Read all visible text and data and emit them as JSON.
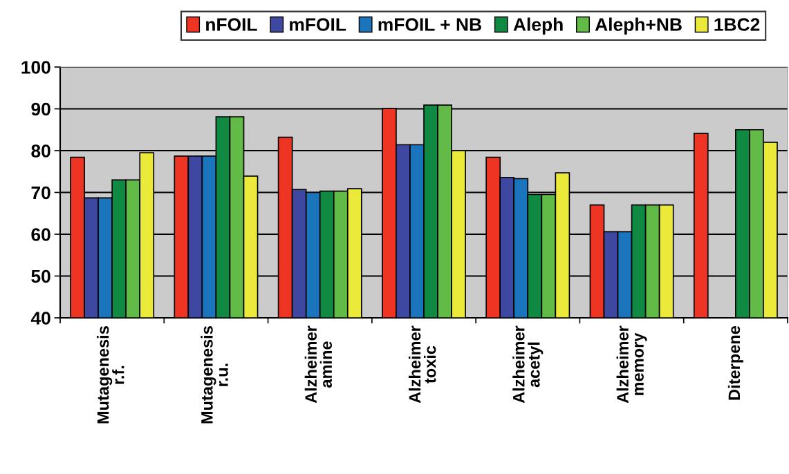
{
  "chart_data": {
    "type": "bar",
    "categories": [
      "Mutagenesis\nr.f.",
      "Mutagenesis\nr.u.",
      "Alzheimer\namine",
      "Alzheimer\ntoxic",
      "Alzheimer\nacetyl",
      "Alzheimer\nmemory",
      "Diterpene"
    ],
    "series": [
      {
        "name": "nFOIL",
        "color": "#ee3524",
        "values": [
          78.4,
          78.7,
          83.2,
          90.1,
          78.4,
          67.0,
          84.1
        ]
      },
      {
        "name": "mFOIL",
        "color": "#3f48a0",
        "values": [
          68.7,
          78.7,
          70.7,
          81.4,
          73.6,
          60.6,
          null
        ]
      },
      {
        "name": "mFOIL + NB",
        "color": "#1a75bc",
        "values": [
          68.7,
          78.7,
          70.0,
          81.4,
          73.3,
          60.6,
          null
        ]
      },
      {
        "name": "Aleph",
        "color": "#108a43",
        "values": [
          73.0,
          88.1,
          70.3,
          90.9,
          69.5,
          67.0,
          85.0
        ]
      },
      {
        "name": "Aleph+NB",
        "color": "#62bb46",
        "values": [
          73.0,
          88.1,
          70.3,
          90.9,
          69.5,
          67.0,
          85.0
        ]
      },
      {
        "name": "1BC2",
        "color": "#ebe93a",
        "values": [
          79.5,
          73.9,
          70.9,
          80.0,
          74.7,
          67.0,
          82.0
        ]
      }
    ],
    "ylim": [
      40,
      100
    ],
    "yticks": [
      40,
      50,
      60,
      70,
      80,
      90,
      100
    ],
    "grid": "y",
    "legend": "top"
  }
}
